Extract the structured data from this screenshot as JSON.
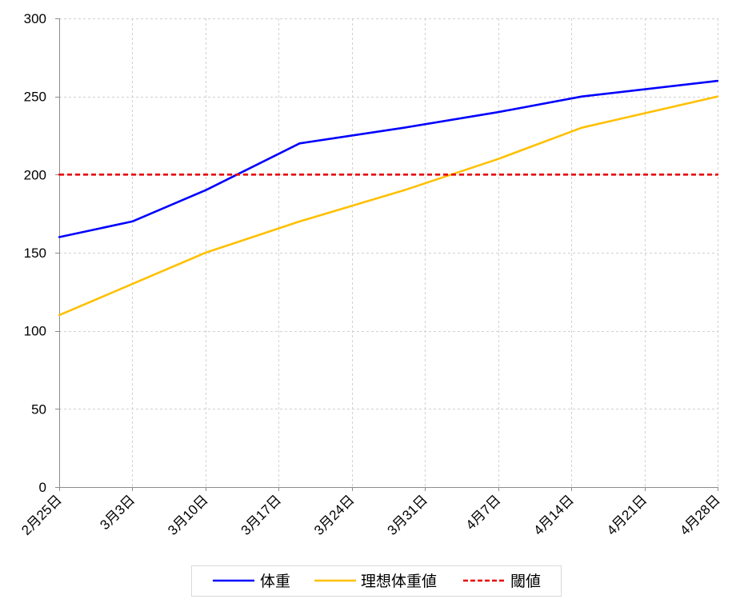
{
  "chart_data": {
    "type": "line",
    "x_ticks": [
      "2月25日",
      "3月3日",
      "3月10日",
      "3月17日",
      "3月24日",
      "3月31日",
      "4月7日",
      "4月14日",
      "4月21日",
      "4月28日"
    ],
    "xlim": [
      "2月25日",
      "4月28日"
    ],
    "y_ticks": [
      0,
      50,
      100,
      150,
      200,
      250,
      300
    ],
    "ylim": [
      0,
      300
    ],
    "grid": true,
    "legend": "bottom",
    "series": [
      {
        "name": "体重",
        "color": "#0000ff",
        "style": "solid",
        "points": [
          {
            "x": "2月25日",
            "y": 160
          },
          {
            "x": "3月3日",
            "y": 170
          },
          {
            "x": "3月10日",
            "y": 190
          },
          {
            "x": "3月19日",
            "y": 220
          },
          {
            "x": "3月29日",
            "y": 230
          },
          {
            "x": "4月7日",
            "y": 240
          },
          {
            "x": "4月15日",
            "y": 250
          },
          {
            "x": "4月28日",
            "y": 260
          }
        ]
      },
      {
        "name": "理想体重値",
        "color": "#ffc000",
        "style": "solid",
        "points": [
          {
            "x": "2月25日",
            "y": 110
          },
          {
            "x": "3月3日",
            "y": 130
          },
          {
            "x": "3月10日",
            "y": 150
          },
          {
            "x": "3月19日",
            "y": 170
          },
          {
            "x": "3月29日",
            "y": 190
          },
          {
            "x": "4月7日",
            "y": 210
          },
          {
            "x": "4月15日",
            "y": 230
          },
          {
            "x": "4月28日",
            "y": 250
          }
        ]
      },
      {
        "name": "閾値",
        "color": "#e60000",
        "style": "dashed",
        "points": [
          {
            "x": "2月25日",
            "y": 200
          },
          {
            "x": "4月28日",
            "y": 200
          }
        ]
      }
    ]
  }
}
